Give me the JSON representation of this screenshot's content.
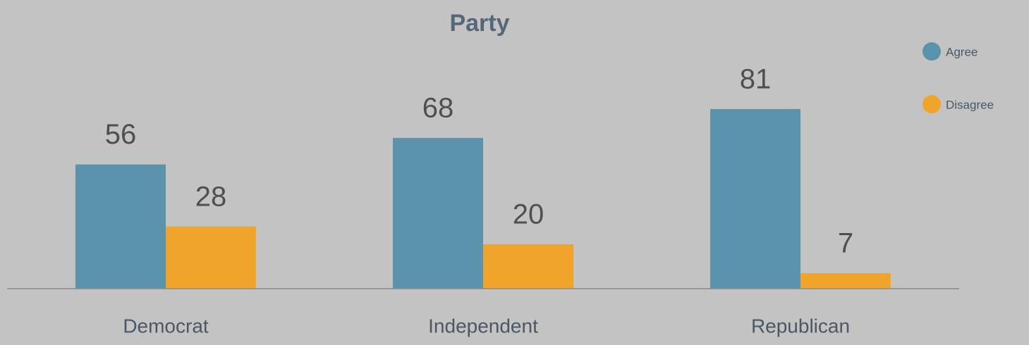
{
  "chart_data": {
    "type": "bar",
    "title": "Party",
    "categories": [
      "Democrat",
      "Independent",
      "Republican"
    ],
    "series": [
      {
        "name": "Agree",
        "color": "#5b93ad",
        "values": [
          56,
          68,
          81
        ]
      },
      {
        "name": "Disagree",
        "color": "#f0a42c",
        "values": [
          28,
          20,
          7
        ]
      }
    ],
    "legend": "upper right"
  }
}
